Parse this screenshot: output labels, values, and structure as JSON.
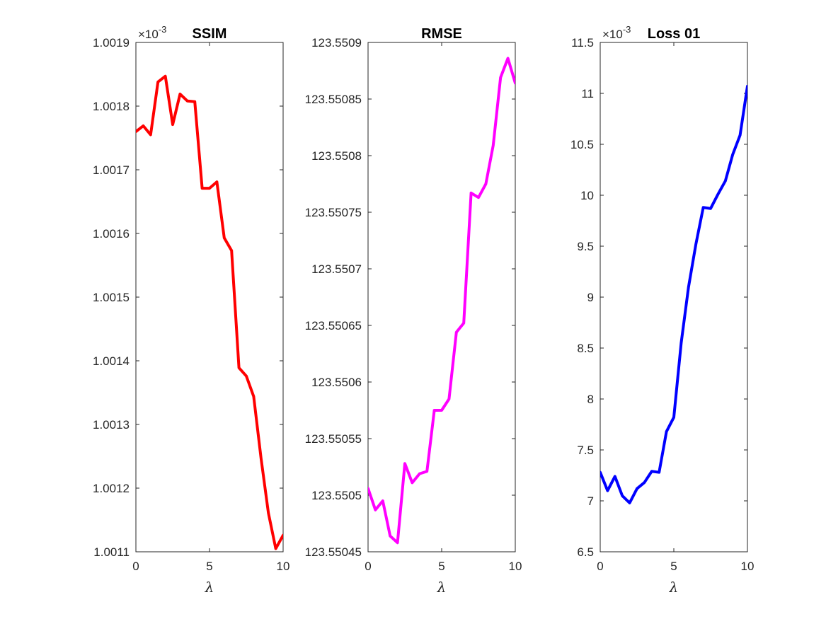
{
  "colors": {
    "ssim": "#ff0000",
    "rmse": "#ff00ff",
    "loss": "#0000ff"
  },
  "chart_data": [
    {
      "type": "line",
      "title": "SSIM",
      "xlabel": "λ",
      "ylabel": "",
      "exponent_label": "×10",
      "exponent": "-3",
      "xlim": [
        0,
        10
      ],
      "ylim": [
        1.0011,
        1.0019
      ],
      "xticks": [
        "0",
        "5",
        "10"
      ],
      "yticks": [
        "1.0011",
        "1.0012",
        "1.0013",
        "1.0014",
        "1.0015",
        "1.0016",
        "1.0017",
        "1.0018",
        "1.0019"
      ],
      "x": [
        0,
        0.5,
        1,
        1.5,
        2,
        2.5,
        3,
        3.5,
        4,
        4.5,
        5,
        5.5,
        6,
        6.5,
        7,
        7.5,
        8,
        8.5,
        9,
        9.5,
        10
      ],
      "series": [
        {
          "color": "#ff0000",
          "values": [
            1.00176,
            1.001769,
            1.001755,
            1.001838,
            1.001847,
            1.001771,
            1.001819,
            1.001808,
            1.001807,
            1.001671,
            1.001671,
            1.001681,
            1.001593,
            1.001573,
            1.001389,
            1.001376,
            1.001344,
            1.001247,
            1.001161,
            1.001105,
            1.001126
          ]
        }
      ],
      "grid": false
    },
    {
      "type": "line",
      "title": "RMSE",
      "xlabel": "λ",
      "ylabel": "",
      "xlim": [
        0,
        10
      ],
      "ylim": [
        123.55045,
        123.5509
      ],
      "xticks": [
        "0",
        "5",
        "10"
      ],
      "yticks": [
        "123.55045",
        "123.5505",
        "123.55055",
        "123.5506",
        "123.55065",
        "123.5507",
        "123.55075",
        "123.5508",
        "123.55085",
        "123.5509"
      ],
      "x": [
        0,
        0.5,
        1,
        1.5,
        2,
        2.5,
        3,
        3.5,
        4,
        4.5,
        5,
        5.5,
        6,
        6.5,
        7,
        7.5,
        8,
        8.5,
        9,
        9.5,
        10
      ],
      "series": [
        {
          "color": "#ff00ff",
          "values": [
            123.550506,
            123.550487,
            123.550495,
            123.550464,
            123.550458,
            123.550528,
            123.550511,
            123.550519,
            123.550521,
            123.550575,
            123.550575,
            123.550585,
            123.550644,
            123.550652,
            123.550767,
            123.550763,
            123.550775,
            123.550809,
            123.550869,
            123.550886,
            123.550864
          ]
        }
      ],
      "grid": false
    },
    {
      "type": "line",
      "title": "Loss 01",
      "xlabel": "λ",
      "ylabel": "",
      "exponent_label": "×10",
      "exponent": "-3",
      "xlim": [
        0,
        10
      ],
      "ylim": [
        6.5,
        11.5
      ],
      "xticks": [
        "0",
        "5",
        "10"
      ],
      "yticks": [
        "6.5",
        "7",
        "7.5",
        "8",
        "8.5",
        "9",
        "9.5",
        "10",
        "10.5",
        "11",
        "11.5"
      ],
      "x": [
        0,
        0.5,
        1,
        1.5,
        2,
        2.5,
        3,
        3.5,
        4,
        4.5,
        5,
        5.5,
        6,
        6.5,
        7,
        7.5,
        8,
        8.5,
        9,
        9.5,
        10
      ],
      "series": [
        {
          "color": "#0000ff",
          "values": [
            7.28,
            7.1,
            7.24,
            7.05,
            6.98,
            7.12,
            7.18,
            7.29,
            7.28,
            7.68,
            7.82,
            8.55,
            9.1,
            9.52,
            9.88,
            9.87,
            10.01,
            10.14,
            10.4,
            10.59,
            11.07
          ]
        }
      ],
      "grid": false
    }
  ]
}
